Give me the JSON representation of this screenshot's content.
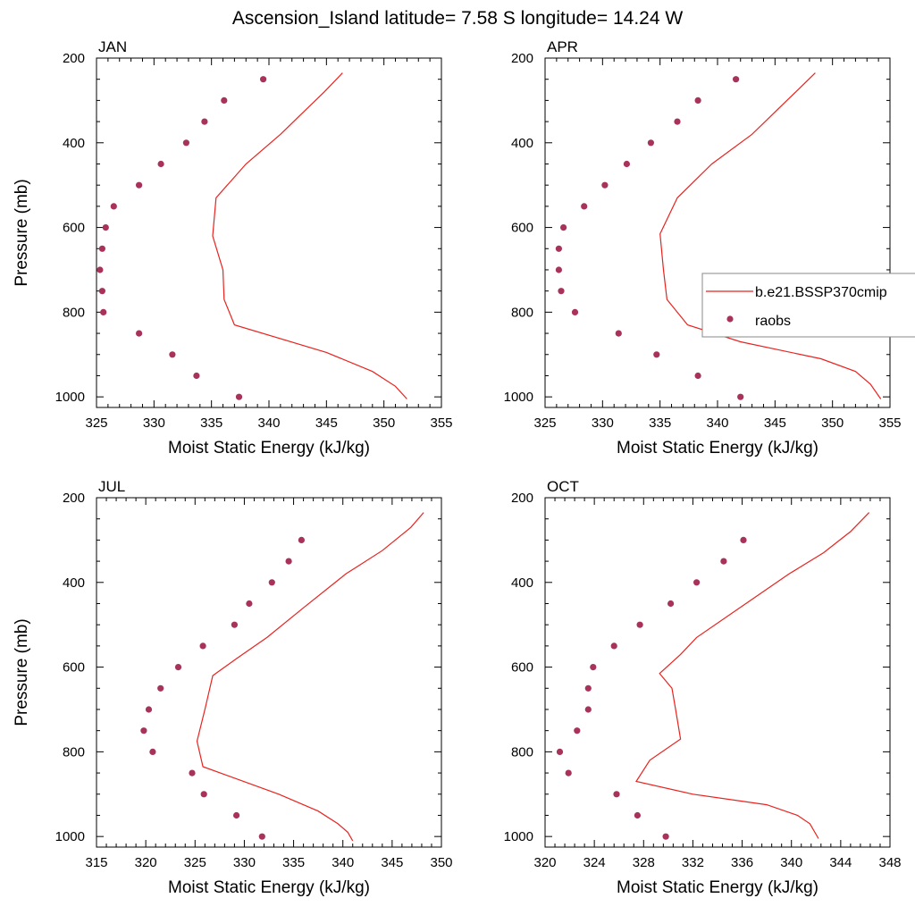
{
  "figure": {
    "title": "Ascension_Island  latitude= 7.58 S longitude= 14.24 W"
  },
  "colors": {
    "model_line": "#e8231f",
    "obs_marker": "#a8325a",
    "axis": "#000000"
  },
  "legend": {
    "placement": "right of APR panel",
    "entries": [
      {
        "label": "b.e21.BSSP370cmip",
        "style": "line",
        "color": "#e8231f"
      },
      {
        "label": "raobs",
        "style": "marker",
        "color": "#a8325a"
      }
    ]
  },
  "chart_data": [
    {
      "type": "line",
      "panel_label": "JAN",
      "xlabel": "Moist Static Energy (kJ/kg)",
      "ylabel": "Pressure (mb)",
      "xlim": [
        325,
        355
      ],
      "ylim": [
        200,
        1025
      ],
      "y_inverted": true,
      "xticks": [
        325,
        330,
        335,
        340,
        345,
        350,
        355
      ],
      "yticks": [
        200,
        400,
        600,
        800,
        1000
      ],
      "series": [
        {
          "name": "b.e21.BSSP370cmip",
          "kind": "line",
          "x": [
            346.4,
            344.8,
            341.0,
            338.0,
            335.4,
            335.1,
            336.0,
            336.1,
            337.0,
            345.0,
            349.0,
            351.0,
            352.0
          ],
          "y": [
            235,
            280,
            380,
            450,
            530,
            620,
            700,
            770,
            830,
            895,
            940,
            975,
            1005
          ]
        },
        {
          "name": "raobs",
          "kind": "scatter",
          "x": [
            339.5,
            336.1,
            334.4,
            332.8,
            330.6,
            328.7,
            326.5,
            325.8,
            325.5,
            325.3,
            325.5,
            325.6,
            328.7,
            331.6,
            333.7,
            337.4
          ],
          "y": [
            250,
            300,
            350,
            400,
            450,
            500,
            550,
            600,
            650,
            700,
            750,
            800,
            850,
            900,
            950,
            1000
          ]
        }
      ]
    },
    {
      "type": "line",
      "panel_label": "APR",
      "xlabel": "Moist Static Energy (kJ/kg)",
      "ylabel": "",
      "xlim": [
        325,
        355
      ],
      "ylim": [
        200,
        1025
      ],
      "y_inverted": true,
      "xticks": [
        325,
        330,
        335,
        340,
        345,
        350,
        355
      ],
      "yticks": [
        200,
        400,
        600,
        800,
        1000
      ],
      "series": [
        {
          "name": "b.e21.BSSP370cmip",
          "kind": "line",
          "x": [
            348.5,
            346.8,
            343.0,
            339.5,
            336.5,
            335.0,
            335.3,
            335.6,
            337.4,
            342.0,
            349.0,
            352.0,
            353.3,
            354.2
          ],
          "y": [
            235,
            280,
            380,
            450,
            530,
            615,
            700,
            770,
            830,
            870,
            910,
            940,
            970,
            1005
          ]
        },
        {
          "name": "raobs",
          "kind": "scatter",
          "x": [
            341.6,
            338.3,
            336.5,
            334.2,
            332.1,
            330.2,
            328.4,
            326.6,
            326.2,
            326.2,
            326.4,
            327.6,
            331.4,
            334.7,
            338.3,
            342.0
          ],
          "y": [
            250,
            300,
            350,
            400,
            450,
            500,
            550,
            600,
            650,
            700,
            750,
            800,
            850,
            900,
            950,
            1000
          ]
        }
      ]
    },
    {
      "type": "line",
      "panel_label": "JUL",
      "xlabel": "Moist Static Energy (kJ/kg)",
      "ylabel": "Pressure (mb)",
      "xlim": [
        315,
        350
      ],
      "ylim": [
        200,
        1025
      ],
      "y_inverted": true,
      "xticks": [
        315,
        320,
        325,
        330,
        335,
        340,
        345,
        350
      ],
      "yticks": [
        200,
        400,
        600,
        800,
        1000
      ],
      "series": [
        {
          "name": "b.e21.BSSP370cmip",
          "kind": "line",
          "x": [
            348.2,
            346.9,
            344.0,
            340.3,
            336.0,
            332.3,
            329.2,
            326.8,
            326.0,
            325.2,
            325.8,
            333.5,
            337.5,
            339.5,
            340.5,
            341.0
          ],
          "y": [
            235,
            270,
            325,
            380,
            460,
            530,
            580,
            620,
            700,
            775,
            835,
            900,
            940,
            970,
            990,
            1010
          ]
        },
        {
          "name": "raobs",
          "kind": "scatter",
          "x": [
            335.8,
            334.5,
            332.8,
            330.5,
            329.0,
            325.8,
            323.3,
            321.5,
            320.3,
            319.8,
            320.7,
            324.7,
            325.9,
            329.2,
            331.8
          ],
          "y": [
            300,
            350,
            400,
            450,
            500,
            550,
            600,
            650,
            700,
            750,
            800,
            850,
            900,
            950,
            1000
          ]
        }
      ]
    },
    {
      "type": "line",
      "panel_label": "OCT",
      "xlabel": "Moist Static Energy (kJ/kg)",
      "ylabel": "",
      "xlim": [
        320,
        348
      ],
      "ylim": [
        200,
        1025
      ],
      "y_inverted": true,
      "xticks": [
        320,
        324,
        328,
        332,
        336,
        340,
        344,
        348
      ],
      "yticks": [
        200,
        400,
        600,
        800,
        1000
      ],
      "series": [
        {
          "name": "b.e21.BSSP370cmip",
          "kind": "line",
          "x": [
            346.3,
            344.8,
            342.6,
            339.8,
            336.3,
            332.3,
            331.0,
            329.3,
            330.3,
            330.6,
            331.0,
            328.5,
            327.4,
            332.0,
            338.0,
            340.5,
            341.5,
            342.2
          ],
          "y": [
            235,
            280,
            330,
            380,
            450,
            530,
            570,
            615,
            650,
            700,
            770,
            820,
            870,
            900,
            925,
            950,
            970,
            1005
          ]
        },
        {
          "name": "raobs",
          "kind": "scatter",
          "x": [
            336.1,
            334.5,
            332.3,
            330.2,
            327.7,
            325.6,
            323.9,
            323.5,
            323.5,
            322.6,
            321.2,
            321.9,
            325.8,
            327.5,
            329.8
          ],
          "y": [
            300,
            350,
            400,
            450,
            500,
            550,
            600,
            650,
            700,
            750,
            800,
            850,
            900,
            950,
            1000
          ]
        }
      ]
    }
  ]
}
